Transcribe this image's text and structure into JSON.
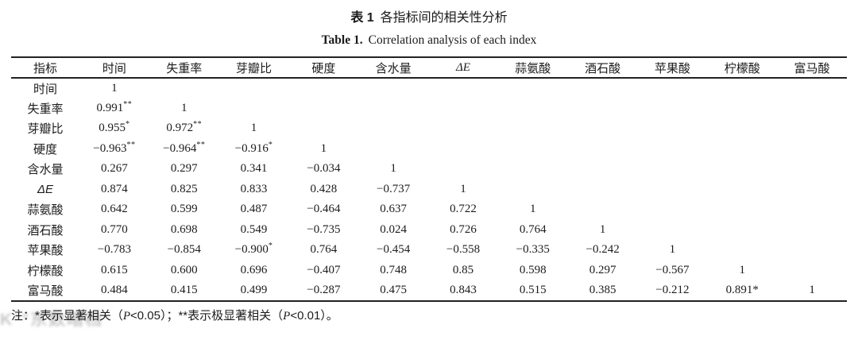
{
  "title": {
    "zh_prefix": "表 1",
    "zh_text": "各指标间的相关性分析",
    "en_prefix": "Table 1.",
    "en_text": "Correlation analysis of each index"
  },
  "table": {
    "columns": [
      "指标",
      "时间",
      "失重率",
      "芽瓣比",
      "硬度",
      "含水量",
      "ΔE",
      "蒜氨酸",
      "酒石酸",
      "苹果酸",
      "柠檬酸",
      "富马酸"
    ],
    "rows": [
      {
        "label": "时间",
        "values": [
          "1",
          "",
          "",
          "",
          "",
          "",
          "",
          "",
          "",
          "",
          ""
        ]
      },
      {
        "label": "失重率",
        "values": [
          "0.991^**",
          "1",
          "",
          "",
          "",
          "",
          "",
          "",
          "",
          "",
          ""
        ]
      },
      {
        "label": "芽瓣比",
        "values": [
          "0.955^*",
          "0.972^**",
          "1",
          "",
          "",
          "",
          "",
          "",
          "",
          "",
          ""
        ]
      },
      {
        "label": "硬度",
        "values": [
          "−0.963^**",
          "−0.964^**",
          "−0.916^*",
          "1",
          "",
          "",
          "",
          "",
          "",
          "",
          ""
        ]
      },
      {
        "label": "含水量",
        "values": [
          "0.267",
          "0.297",
          "0.341",
          "−0.034",
          "1",
          "",
          "",
          "",
          "",
          "",
          ""
        ]
      },
      {
        "label": "ΔE",
        "values": [
          "0.874",
          "0.825",
          "0.833",
          "0.428",
          "−0.737",
          "1",
          "",
          "",
          "",
          "",
          ""
        ]
      },
      {
        "label": "蒜氨酸",
        "values": [
          "0.642",
          "0.599",
          "0.487",
          "−0.464",
          "0.637",
          "0.722",
          "1",
          "",
          "",
          "",
          ""
        ]
      },
      {
        "label": "酒石酸",
        "values": [
          "0.770",
          "0.698",
          "0.549",
          "−0.735",
          "0.024",
          "0.726",
          "0.764",
          "1",
          "",
          "",
          ""
        ]
      },
      {
        "label": "苹果酸",
        "values": [
          "−0.783",
          "−0.854",
          "−0.900^*",
          "0.764",
          "−0.454",
          "−0.558",
          "−0.335",
          "−0.242",
          "1",
          "",
          ""
        ]
      },
      {
        "label": "柠檬酸",
        "values": [
          "0.615",
          "0.600",
          "0.696",
          "−0.407",
          "0.748",
          "0.85",
          "0.598",
          "0.297",
          "−0.567",
          "1",
          ""
        ]
      },
      {
        "label": "富马酸",
        "values": [
          "0.484",
          "0.415",
          "0.499",
          "−0.287",
          "0.475",
          "0.843",
          "0.515",
          "0.385",
          "−0.212",
          "0.891*",
          "1"
        ]
      }
    ]
  },
  "note": {
    "part1": "注：*表示显著相关（",
    "p1": "P",
    "part2": "<0.05）；**表示极显著相关（",
    "p2": "P",
    "part3": "<0.01）。"
  },
  "watermark_text": "K°°东数暗档",
  "colors": {
    "text": "#1c1c1c",
    "rule": "#222222",
    "watermark": "#b6b6b6",
    "background": "#ffffff"
  }
}
